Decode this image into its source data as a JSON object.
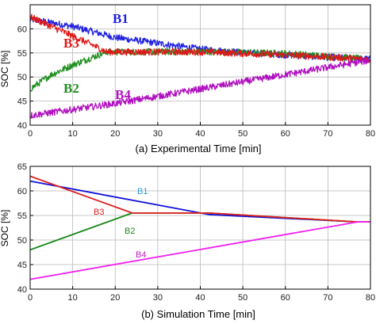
{
  "chart_data": [
    {
      "type": "line",
      "caption": "(a) Experimental Time [min]",
      "ylabel": "SOC [%]",
      "xlim": [
        0,
        80
      ],
      "ylim": [
        40,
        65
      ],
      "xticks": [
        0,
        10,
        20,
        30,
        40,
        50,
        60,
        70,
        80
      ],
      "yticks": [
        40,
        45,
        50,
        55,
        60
      ],
      "grid": true,
      "series": [
        {
          "name": "B1",
          "color": "#2020e0",
          "x": [
            0,
            10,
            20,
            30,
            40,
            50,
            60,
            70,
            80
          ],
          "y": [
            62,
            60.5,
            58.2,
            57,
            55.8,
            55.1,
            54.6,
            54.1,
            53.7
          ]
        },
        {
          "name": "B2",
          "color": "#1f8f1f",
          "x": [
            0,
            5,
            10,
            15,
            18,
            25,
            40,
            60,
            75,
            80
          ],
          "y": [
            47.5,
            50.5,
            52.5,
            54.2,
            55.2,
            55.2,
            55.3,
            54.9,
            54,
            53.6
          ]
        },
        {
          "name": "B3",
          "color": "#e01818",
          "x": [
            0,
            5,
            10,
            15,
            18,
            30,
            40,
            60,
            75,
            80
          ],
          "y": [
            62.5,
            60.5,
            58.5,
            56.5,
            55.2,
            55.2,
            55.2,
            54.6,
            53.9,
            53.6
          ]
        },
        {
          "name": "B4",
          "color": "#b010c0",
          "x": [
            0,
            20,
            40,
            60,
            80
          ],
          "y": [
            42,
            44.5,
            47.5,
            50.5,
            53.5
          ]
        }
      ]
    },
    {
      "type": "line",
      "caption": "(b) Simulation Time [min]",
      "ylabel": "SOC [%]",
      "xlim": [
        0,
        80
      ],
      "ylim": [
        40,
        65
      ],
      "xticks": [
        0,
        10,
        20,
        30,
        40,
        50,
        60,
        70,
        80
      ],
      "yticks": [
        40,
        45,
        50,
        55,
        60,
        65
      ],
      "grid": true,
      "series": [
        {
          "name": "B1",
          "color": "#1010d8",
          "label_color": "#2a9fd6",
          "x": [
            0,
            42,
            77,
            80
          ],
          "y": [
            62,
            55.2,
            53.7,
            53.7
          ]
        },
        {
          "name": "B2",
          "color": "#1a8a1a",
          "label_color": "#1a8a1a",
          "x": [
            0,
            24,
            42,
            77,
            80
          ],
          "y": [
            48,
            55.5,
            55.5,
            53.7,
            53.7
          ]
        },
        {
          "name": "B3",
          "color": "#e02020",
          "label_color": "#e02020",
          "x": [
            0,
            24,
            42,
            77,
            80
          ],
          "y": [
            63,
            55.5,
            55.5,
            53.7,
            53.7
          ]
        },
        {
          "name": "B4",
          "color": "#f020f0",
          "label_color": "#c020c0",
          "x": [
            0,
            77,
            80
          ],
          "y": [
            42,
            53.7,
            53.7
          ]
        }
      ]
    }
  ]
}
